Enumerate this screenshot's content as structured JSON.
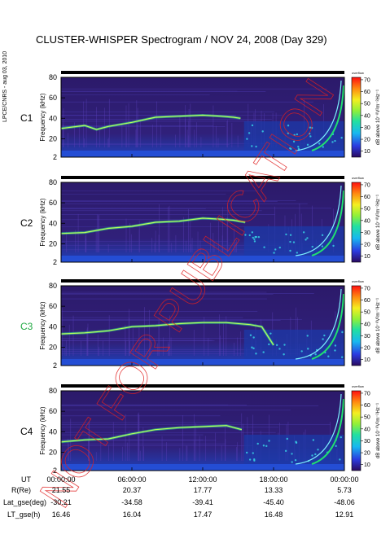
{
  "title": "CLUSTER-WHISPER Spectrogram / NOV 24, 2008 (Day 329)",
  "side_label": "LPCE/CNRS - aug 03, 2010",
  "watermark": "NOT FOR PUBLICATION",
  "colors": {
    "spectrum_bg": "#2a1c6e",
    "emission_line": "#b8ff5a",
    "legend_label_cluster3": "#22aa44"
  },
  "chart_data": {
    "type": "heatmap",
    "title": "CLUSTER-WHISPER Spectrogram / NOV 24, 2008 (Day 329)",
    "xlabel": "UT",
    "ylabel": "Frequency (kHz)",
    "ylim": [
      2,
      80
    ],
    "ytick_labels": [
      "80",
      "60",
      "40",
      "20",
      "2"
    ],
    "colorbar": {
      "label": "dB above 10⁻⁸V²m⁻²Hz⁻¹",
      "overflow_label": "overflow",
      "ticks": [
        "70",
        "60",
        "50",
        "40",
        "30",
        "20",
        "10"
      ],
      "range": [
        5,
        72
      ]
    },
    "panels": [
      {
        "name": "C1",
        "label_color": "#000000",
        "emission_line": {
          "t_hours": [
            0,
            2,
            3,
            4,
            6,
            8,
            10,
            12,
            13.5,
            14.6,
            15.2
          ],
          "f_khz": [
            30,
            33,
            29,
            32,
            36,
            41,
            42,
            43,
            42,
            41,
            40
          ]
        }
      },
      {
        "name": "C2",
        "label_color": "#000000",
        "emission_line": {
          "t_hours": [
            0,
            2,
            4,
            6,
            8,
            10,
            12,
            13.5,
            14.6,
            15.6
          ],
          "f_khz": [
            30,
            31,
            35,
            37,
            41,
            42,
            45,
            44,
            43,
            41
          ]
        }
      },
      {
        "name": "C3",
        "label_color": "#22aa44",
        "emission_line": {
          "t_hours": [
            0,
            2,
            4,
            6,
            8,
            10,
            12,
            14,
            16,
            17,
            18
          ],
          "f_khz": [
            33,
            34,
            36,
            40,
            41,
            43,
            44,
            44,
            42,
            40,
            22
          ]
        }
      },
      {
        "name": "C4",
        "label_color": "#000000",
        "emission_line": {
          "t_hours": [
            0,
            2,
            4,
            6,
            8,
            10,
            12,
            14,
            15.3
          ],
          "f_khz": [
            30,
            32,
            33,
            38,
            42,
            44,
            45,
            46,
            42
          ]
        }
      }
    ],
    "x_axis": {
      "label": "UT",
      "range_hours": [
        0,
        24
      ],
      "ticks": [
        "00:00:00",
        "06:00:00",
        "12:00:00",
        "18:00:00",
        "00:00:00"
      ]
    },
    "orbit_rows": [
      {
        "label": "R(Re)",
        "values": [
          "21.55",
          "20.37",
          "17.77",
          "13.33",
          "5.73"
        ]
      },
      {
        "label": "Lat_gse(deg)",
        "values": [
          "-30.21",
          "-34.58",
          "-39.41",
          "-45.40",
          "-48.06"
        ]
      },
      {
        "label": "LT_gse(h)",
        "values": [
          "16.46",
          "16.04",
          "17.47",
          "16.48",
          "12.91"
        ]
      }
    ]
  }
}
